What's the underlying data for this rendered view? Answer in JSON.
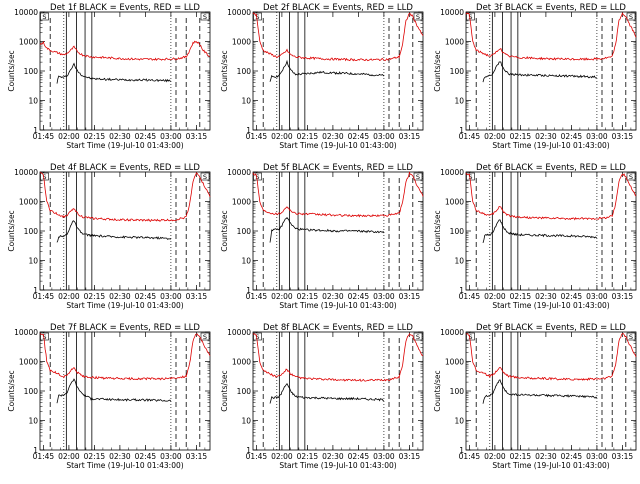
{
  "chart_data": {
    "type": "line",
    "layout": "3x3 grid of panels",
    "ylabel": "Counts/sec",
    "xlabel": "Start Time (19-Jul-10 01:43:00)",
    "yscale": "log",
    "ylim": [
      1,
      10000
    ],
    "ytick_labels": [
      "1",
      "10",
      "100",
      "1000",
      "10000"
    ],
    "xlim_minutes_after_start": [
      0,
      100
    ],
    "xtick_labels": [
      "01:45",
      "02:00",
      "02:15",
      "02:30",
      "02:45",
      "03:00",
      "03:15"
    ],
    "xtick_minutes_after_start": [
      2,
      17,
      32,
      47,
      62,
      77,
      92
    ],
    "dashed_markers_minutes": [
      6,
      80,
      86,
      94
    ],
    "dotted_markers_minutes": [
      14,
      77
    ],
    "solid_markers_minutes": [
      15.5,
      21.5,
      26.5,
      30.5
    ],
    "corner_markers": [
      "S",
      "S"
    ],
    "series_colors": {
      "events": "#000000",
      "lld": "#dd0000"
    },
    "panels": [
      {
        "title": "Det 1f BLACK = Events, RED = LLD",
        "events_gap": [
          6,
          10
        ],
        "series": [
          {
            "name": "Events",
            "color": "#000000",
            "x": [
              10,
              11,
              14,
              16,
              18,
              20,
              22,
              25,
              30,
              40,
              50,
              60,
              70,
              77
            ],
            "y": [
              40,
              65,
              60,
              70,
              110,
              170,
              100,
              70,
              55,
              52,
              50,
              50,
              48,
              47
            ]
          },
          {
            "name": "LLD",
            "color": "#dd0000",
            "x": [
              0,
              2,
              4,
              6,
              10,
              14,
              16,
              18,
              20,
              22,
              25,
              30,
              40,
              50,
              60,
              70,
              80,
              86,
              88,
              90,
              92,
              94,
              96,
              100
            ],
            "y": [
              800,
              900,
              600,
              500,
              420,
              350,
              400,
              500,
              650,
              450,
              350,
              300,
              280,
              260,
              250,
              250,
              260,
              300,
              500,
              900,
              1000,
              800,
              500,
              300
            ]
          }
        ]
      },
      {
        "title": "Det 2f BLACK = Events, RED = LLD",
        "events_gap": [
          6,
          10
        ],
        "series": [
          {
            "name": "Events",
            "color": "#000000",
            "x": [
              10,
              11,
              14,
              16,
              18,
              20,
              22,
              25,
              30,
              40,
              50,
              60,
              70,
              77
            ],
            "y": [
              40,
              65,
              65,
              75,
              130,
              200,
              110,
              75,
              80,
              90,
              85,
              80,
              75,
              70
            ]
          },
          {
            "name": "LLD",
            "color": "#dd0000",
            "x": [
              0,
              2,
              4,
              6,
              10,
              14,
              16,
              18,
              20,
              22,
              25,
              30,
              40,
              50,
              60,
              70,
              80,
              86,
              88,
              90,
              92,
              94,
              96,
              100
            ],
            "y": [
              9000,
              8000,
              1000,
              500,
              380,
              300,
              320,
              400,
              500,
              360,
              300,
              280,
              260,
              250,
              240,
              240,
              250,
              300,
              800,
              5000,
              9000,
              7000,
              4000,
              1500
            ]
          }
        ]
      },
      {
        "title": "Det 3f BLACK = Events, RED = LLD",
        "events_gap": [
          6,
          10
        ],
        "series": [
          {
            "name": "Events",
            "color": "#000000",
            "x": [
              10,
              11,
              14,
              16,
              18,
              20,
              22,
              25,
              30,
              40,
              50,
              60,
              70,
              77
            ],
            "y": [
              40,
              65,
              70,
              85,
              150,
              220,
              120,
              80,
              75,
              72,
              70,
              68,
              65,
              62
            ]
          },
          {
            "name": "LLD",
            "color": "#dd0000",
            "x": [
              0,
              2,
              4,
              6,
              10,
              14,
              16,
              18,
              20,
              22,
              25,
              30,
              40,
              50,
              60,
              70,
              80,
              86,
              88,
              90,
              92,
              94,
              96,
              100
            ],
            "y": [
              9000,
              8000,
              1000,
              500,
              400,
              320,
              350,
              450,
              600,
              400,
              320,
              290,
              270,
              260,
              250,
              250,
              260,
              300,
              800,
              5000,
              9000,
              7000,
              4000,
              1500
            ]
          }
        ]
      },
      {
        "title": "Det 4f BLACK = Events, RED = LLD",
        "events_gap": [
          6,
          10
        ],
        "series": [
          {
            "name": "Events",
            "color": "#000000",
            "x": [
              10,
              11,
              14,
              16,
              18,
              20,
              22,
              25,
              30,
              40,
              50,
              60,
              70,
              77
            ],
            "y": [
              40,
              65,
              65,
              80,
              150,
              230,
              120,
              80,
              70,
              65,
              62,
              60,
              58,
              55
            ]
          },
          {
            "name": "LLD",
            "color": "#dd0000",
            "x": [
              0,
              2,
              4,
              6,
              10,
              14,
              16,
              18,
              20,
              22,
              25,
              30,
              40,
              50,
              60,
              70,
              80,
              86,
              88,
              90,
              92,
              94,
              96,
              100
            ],
            "y": [
              9000,
              8000,
              1000,
              500,
              380,
              300,
              350,
              450,
              600,
              400,
              300,
              270,
              250,
              240,
              230,
              230,
              240,
              300,
              800,
              5000,
              9000,
              7000,
              4000,
              1500
            ]
          }
        ]
      },
      {
        "title": "Det 5f BLACK = Events, RED = LLD",
        "events_gap": [
          6,
          10
        ],
        "series": [
          {
            "name": "Events",
            "color": "#000000",
            "x": [
              10,
              11,
              14,
              16,
              18,
              20,
              22,
              25,
              30,
              40,
              50,
              60,
              70,
              77
            ],
            "y": [
              40,
              110,
              110,
              120,
              200,
              300,
              180,
              120,
              110,
              105,
              100,
              100,
              95,
              90
            ]
          },
          {
            "name": "LLD",
            "color": "#dd0000",
            "x": [
              0,
              2,
              4,
              6,
              10,
              14,
              16,
              18,
              20,
              22,
              25,
              30,
              40,
              50,
              60,
              70,
              80,
              86,
              88,
              90,
              92,
              94,
              96,
              100
            ],
            "y": [
              9000,
              8000,
              1000,
              500,
              420,
              380,
              400,
              500,
              700,
              480,
              400,
              380,
              360,
              340,
              330,
              330,
              340,
              400,
              900,
              5000,
              9000,
              7000,
              4000,
              1500
            ]
          }
        ]
      },
      {
        "title": "Det 6f BLACK = Events, RED = LLD",
        "events_gap": [
          6,
          10
        ],
        "series": [
          {
            "name": "Events",
            "color": "#000000",
            "x": [
              10,
              11,
              14,
              16,
              18,
              20,
              22,
              25,
              30,
              40,
              50,
              60,
              70,
              77
            ],
            "y": [
              40,
              70,
              75,
              90,
              170,
              250,
              130,
              85,
              75,
              72,
              70,
              68,
              65,
              62
            ]
          },
          {
            "name": "LLD",
            "color": "#dd0000",
            "x": [
              0,
              2,
              4,
              6,
              10,
              14,
              16,
              18,
              20,
              22,
              25,
              30,
              40,
              50,
              60,
              70,
              80,
              86,
              88,
              90,
              92,
              94,
              96,
              100
            ],
            "y": [
              9000,
              8000,
              1000,
              500,
              400,
              330,
              380,
              500,
              700,
              450,
              330,
              300,
              280,
              270,
              260,
              260,
              270,
              320,
              800,
              5000,
              9000,
              7000,
              4000,
              1500
            ]
          }
        ]
      },
      {
        "title": "Det 7f BLACK = Events, RED = LLD",
        "events_gap": [
          6,
          10
        ],
        "series": [
          {
            "name": "Events",
            "color": "#000000",
            "x": [
              10,
              11,
              14,
              16,
              18,
              20,
              22,
              25,
              30,
              40,
              50,
              60,
              70,
              77
            ],
            "y": [
              40,
              70,
              75,
              90,
              170,
              260,
              130,
              80,
              55,
              52,
              50,
              50,
              48,
              47
            ]
          },
          {
            "name": "LLD",
            "color": "#dd0000",
            "x": [
              0,
              2,
              4,
              6,
              10,
              14,
              16,
              18,
              20,
              22,
              25,
              30,
              40,
              50,
              60,
              70,
              80,
              86,
              88,
              90,
              92,
              94,
              96,
              100
            ],
            "y": [
              9000,
              8000,
              1000,
              500,
              400,
              300,
              350,
              480,
              650,
              420,
              320,
              290,
              270,
              260,
              260,
              260,
              270,
              320,
              800,
              5000,
              9000,
              7000,
              4000,
              1500
            ]
          }
        ]
      },
      {
        "title": "Det 8f BLACK = Events, RED = LLD",
        "events_gap": [
          6,
          10
        ],
        "series": [
          {
            "name": "Events",
            "color": "#000000",
            "x": [
              10,
              11,
              14,
              16,
              18,
              20,
              22,
              25,
              30,
              40,
              50,
              60,
              70,
              77
            ],
            "y": [
              40,
              60,
              60,
              70,
              120,
              180,
              100,
              65,
              60,
              58,
              55,
              55,
              52,
              50
            ]
          },
          {
            "name": "LLD",
            "color": "#dd0000",
            "x": [
              0,
              2,
              4,
              6,
              10,
              14,
              16,
              18,
              20,
              22,
              25,
              30,
              40,
              50,
              60,
              70,
              80,
              86,
              88,
              90,
              92,
              94,
              96,
              100
            ],
            "y": [
              9000,
              8000,
              1000,
              500,
              380,
              300,
              330,
              420,
              550,
              380,
              300,
              270,
              250,
              240,
              230,
              230,
              240,
              300,
              800,
              5000,
              9000,
              7000,
              4000,
              1500
            ]
          }
        ]
      },
      {
        "title": "Det 9f BLACK = Events, RED = LLD",
        "events_gap": [
          6,
          10
        ],
        "series": [
          {
            "name": "Events",
            "color": "#000000",
            "x": [
              10,
              11,
              14,
              16,
              18,
              20,
              22,
              25,
              30,
              40,
              50,
              60,
              70,
              77
            ],
            "y": [
              40,
              65,
              70,
              85,
              160,
              240,
              120,
              80,
              75,
              72,
              70,
              68,
              65,
              62
            ]
          },
          {
            "name": "LLD",
            "color": "#dd0000",
            "x": [
              0,
              2,
              4,
              6,
              10,
              14,
              16,
              18,
              20,
              22,
              25,
              30,
              40,
              50,
              60,
              70,
              80,
              86,
              88,
              90,
              92,
              94,
              96,
              100
            ],
            "y": [
              9000,
              8000,
              1000,
              500,
              400,
              320,
              370,
              480,
              650,
              430,
              320,
              290,
              270,
              260,
              250,
              250,
              260,
              310,
              800,
              5000,
              9000,
              7000,
              4000,
              1500
            ]
          }
        ]
      }
    ]
  }
}
